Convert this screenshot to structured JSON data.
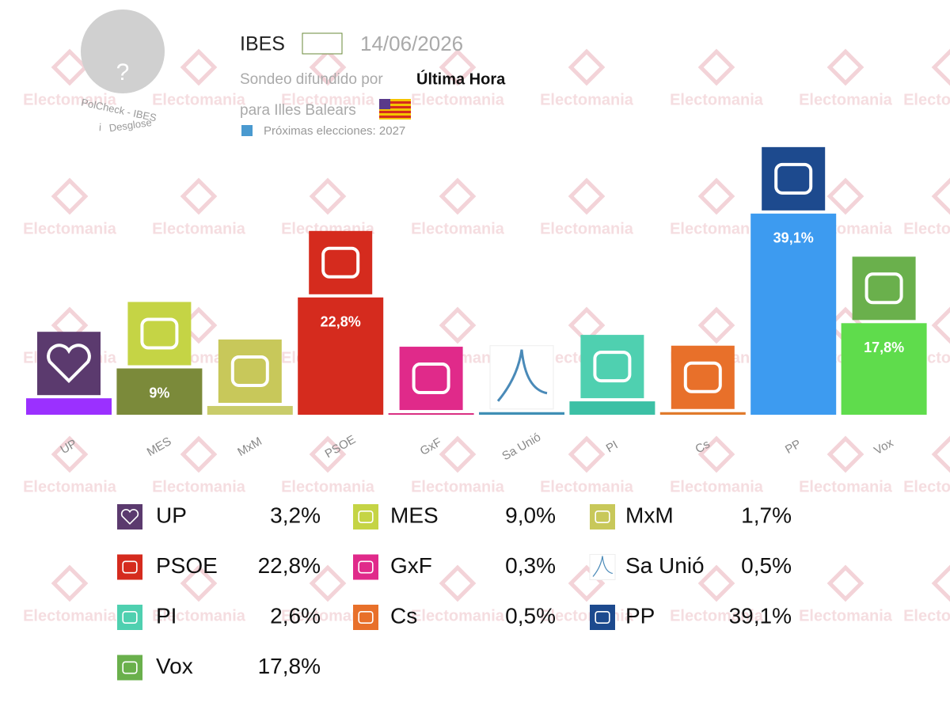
{
  "header": {
    "pollster": "IBES",
    "date": "14/06/2026",
    "spread_by_prefix": "Sondeo difundido por",
    "spread_by": "Última Hora",
    "region": "para Illes Balears",
    "next_elections": "Próximas elecciones: 2027",
    "avatar": "?",
    "check": "PolCheck - IBES",
    "info": "i",
    "breakdown": "Desglose"
  },
  "watermark": "Electomania",
  "chart_data": {
    "type": "bar",
    "categories": [
      "UP",
      "MES",
      "MxM",
      "PSOE",
      "GxF",
      "Sa Unió",
      "PI",
      "Cs",
      "PP",
      "Vox"
    ],
    "values": [
      3.2,
      9.0,
      1.7,
      22.8,
      0.3,
      0.5,
      2.6,
      0.5,
      39.1,
      17.8
    ],
    "value_labels": [
      null,
      "9%",
      null,
      "22,8%",
      null,
      null,
      null,
      null,
      "39,1%",
      "17,8%"
    ],
    "legend_value_labels": [
      "3,2%",
      "9,0%",
      "1,7%",
      "22,8%",
      "0,3%",
      "0,5%",
      "2,6%",
      "0,5%",
      "39,1%",
      "17,8%"
    ],
    "colors": [
      "#9b30ff",
      "#7b8a3a",
      "#c9cc6a",
      "#d52b1e",
      "#d92a80",
      "#3f8fb5",
      "#3cc0a5",
      "#e07a2c",
      "#3d9bf0",
      "#5fdc4c"
    ],
    "logo_colors": [
      "#5b3a6e",
      "#c5d445",
      "#c8c85a",
      "#d52b1e",
      "#e02a8a",
      "#ffffff",
      "#4fd0b0",
      "#e8702a",
      "#1d4a8e",
      "#6ab04c"
    ]
  }
}
